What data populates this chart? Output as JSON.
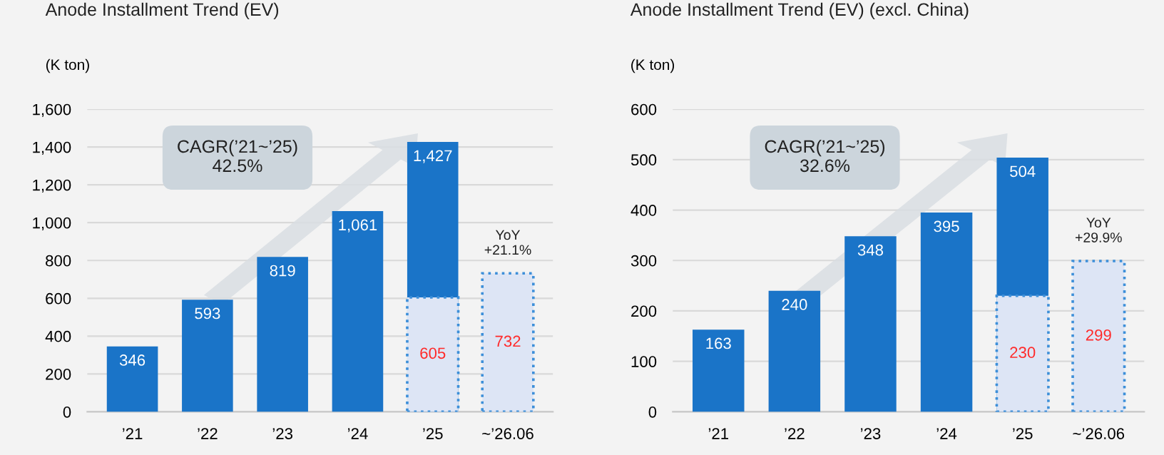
{
  "chart_data": [
    {
      "type": "bar",
      "title": "Anode Installment Trend (EV)",
      "ylabel": "(K ton)",
      "categories": [
        "’21",
        "’22",
        "’23",
        "’24",
        "’25",
        "~’26.06"
      ],
      "series": [
        {
          "color": "#1a74c8",
          "values": [
            346,
            593,
            819,
            1061,
            1427,
            null
          ],
          "value_labels": [
            "346",
            "593",
            "819",
            "1,061",
            "1,427",
            null
          ]
        },
        {
          "color": "#dde5f5",
          "line_style": "dotted",
          "values": [
            null,
            null,
            null,
            null,
            605,
            732
          ],
          "value_labels": [
            null,
            null,
            null,
            null,
            "605",
            "732"
          ]
        }
      ],
      "ylim": [
        0,
        1600
      ],
      "yticks": [
        0,
        200,
        400,
        600,
        800,
        {
          "value": 1000,
          "label": "1,000"
        },
        {
          "value": 1200,
          "label": "1,200"
        },
        {
          "value": 1400,
          "label": "1,400"
        },
        {
          "value": 1600,
          "label": "1,600"
        }
      ],
      "grid": "y",
      "annotations": [
        "CAGR(’21~’25)\n42.5%",
        {
          "text": "YoY\n+21.1%",
          "x": "~’26.06",
          "y": 732
        }
      ]
    },
    {
      "type": "bar",
      "title": "Anode Installment Trend (EV) (excl. China)",
      "ylabel": "(K ton)",
      "categories": [
        "’21",
        "’22",
        "’23",
        "’24",
        "’25",
        "~’26.06"
      ],
      "series": [
        {
          "color": "#1a74c8",
          "values": [
            163,
            240,
            348,
            395,
            504,
            null
          ],
          "value_labels": [
            "163",
            "240",
            "348",
            "395",
            "504",
            null
          ]
        },
        {
          "color": "#dde5f5",
          "line_style": "dotted",
          "values": [
            null,
            null,
            null,
            null,
            230,
            299
          ],
          "value_labels": [
            null,
            null,
            null,
            null,
            "230",
            "299"
          ]
        }
      ],
      "ylim": [
        0,
        600
      ],
      "yticks": [
        0,
        100,
        200,
        300,
        400,
        500,
        600
      ],
      "grid": "y",
      "annotations": [
        "CAGR(’21~’25)\n32.6%",
        {
          "text": "YoY\n+29.9%",
          "x": "~’26.06",
          "y": 299
        }
      ]
    }
  ]
}
